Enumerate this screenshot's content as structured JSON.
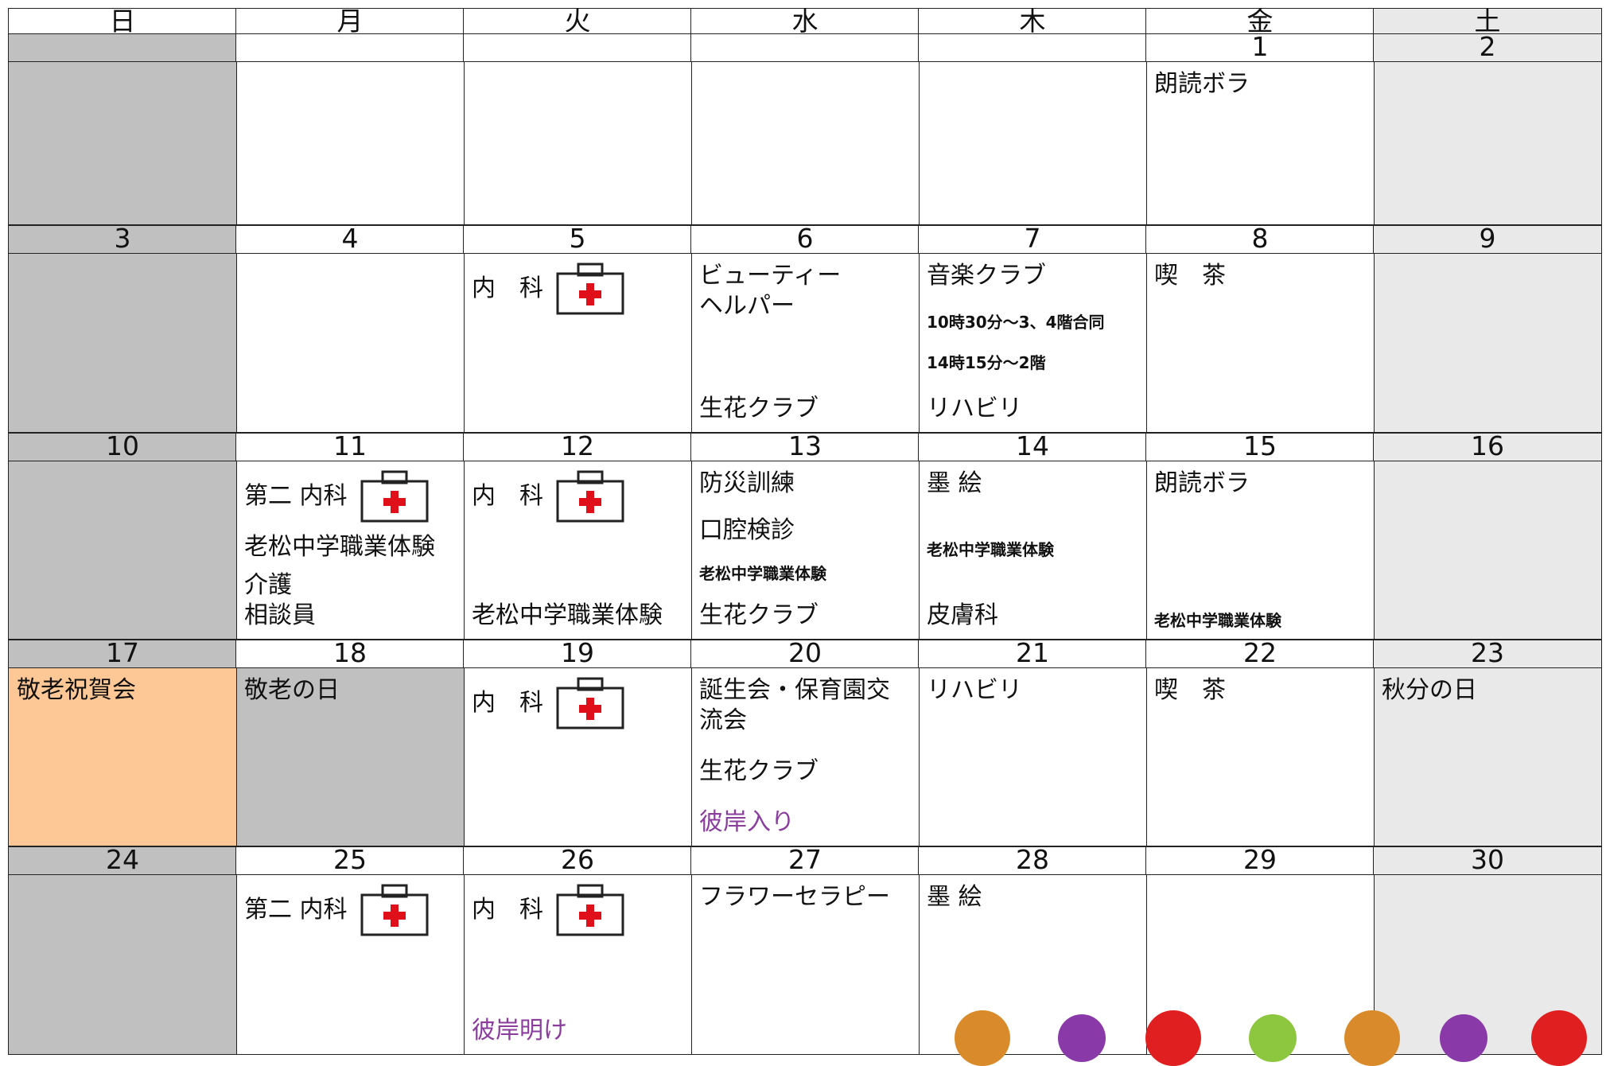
{
  "weekdays": [
    "日",
    "月",
    "火",
    "水",
    "木",
    "金",
    "土"
  ],
  "column_colors": [
    "#c0c0c0",
    "#ffffff",
    "#ffffff",
    "#ffffff",
    "#ffffff",
    "#ffffff",
    "#e9e9e9"
  ],
  "weeks": [
    [
      {
        "day": null
      },
      {
        "day": null
      },
      {
        "day": null
      },
      {
        "day": null
      },
      {
        "day": null
      },
      {
        "day": 1,
        "events": [
          {
            "text": "朗読ボラ"
          }
        ]
      },
      {
        "day": 2
      }
    ],
    [
      {
        "day": 3
      },
      {
        "day": 4
      },
      {
        "day": 5,
        "events": [
          {
            "text": "内　科"
          }
        ]
      },
      {
        "day": 6,
        "events": [
          {
            "text": "ビューティー\nヘルパー"
          },
          {
            "text": "生花クラブ"
          }
        ]
      },
      {
        "day": 7,
        "events": [
          {
            "text": "音楽クラブ"
          },
          {
            "text": "10時30分～3、4階合同",
            "small": true
          },
          {
            "text": "14時15分～2階",
            "small": true
          },
          {
            "text": "リハビリ"
          }
        ]
      },
      {
        "day": 8,
        "events": [
          {
            "text": "喫　茶"
          }
        ]
      },
      {
        "day": 9
      }
    ],
    [
      {
        "day": 10
      },
      {
        "day": 11,
        "events": [
          {
            "text": "第二 内科"
          },
          {
            "text": "老松中学職業体験"
          },
          {
            "text": "介護\n相談員"
          }
        ]
      },
      {
        "day": 12,
        "events": [
          {
            "text": "内　科"
          },
          {
            "text": "老松中学職業体験"
          }
        ]
      },
      {
        "day": 13,
        "events": [
          {
            "text": "防災訓練"
          },
          {
            "text": "口腔検診"
          },
          {
            "text": "老松中学職業体験",
            "small": true
          },
          {
            "text": "生花クラブ"
          }
        ]
      },
      {
        "day": 14,
        "events": [
          {
            "text": "墨 絵"
          },
          {
            "text": "老松中学職業体験",
            "small": true
          },
          {
            "text": "皮膚科"
          }
        ]
      },
      {
        "day": 15,
        "events": [
          {
            "text": "朗読ボラ"
          },
          {
            "text": "老松中学職業体験",
            "small": true
          }
        ]
      },
      {
        "day": 16
      }
    ],
    [
      {
        "day": 17,
        "bg": "#fdc896",
        "events": [
          {
            "text": "敬老祝賀会"
          }
        ]
      },
      {
        "day": 18,
        "bg": "#c0c0c0",
        "events": [
          {
            "text": "敬老の日"
          }
        ]
      },
      {
        "day": 19,
        "events": [
          {
            "text": "内　科"
          }
        ]
      },
      {
        "day": 20,
        "events": [
          {
            "text": "誕生会・保育園交流会"
          },
          {
            "text": "生花クラブ"
          },
          {
            "text": "彼岸入り",
            "color": "#8b3d9e"
          }
        ]
      },
      {
        "day": 21,
        "events": [
          {
            "text": "リハビリ"
          }
        ]
      },
      {
        "day": 22,
        "events": [
          {
            "text": "喫　茶"
          }
        ]
      },
      {
        "day": 23,
        "events": [
          {
            "text": "秋分の日"
          }
        ]
      }
    ],
    [
      {
        "day": 24
      },
      {
        "day": 25,
        "events": [
          {
            "text": "第二 内科"
          }
        ]
      },
      {
        "day": 26,
        "events": [
          {
            "text": "内　科"
          },
          {
            "text": "彼岸明け",
            "color": "#8b3d9e"
          }
        ]
      },
      {
        "day": 27,
        "events": [
          {
            "text": "フラワーセラピー"
          }
        ]
      },
      {
        "day": 28,
        "events": [
          {
            "text": "墨 絵"
          }
        ]
      },
      {
        "day": 29
      },
      {
        "day": 30
      }
    ]
  ]
}
